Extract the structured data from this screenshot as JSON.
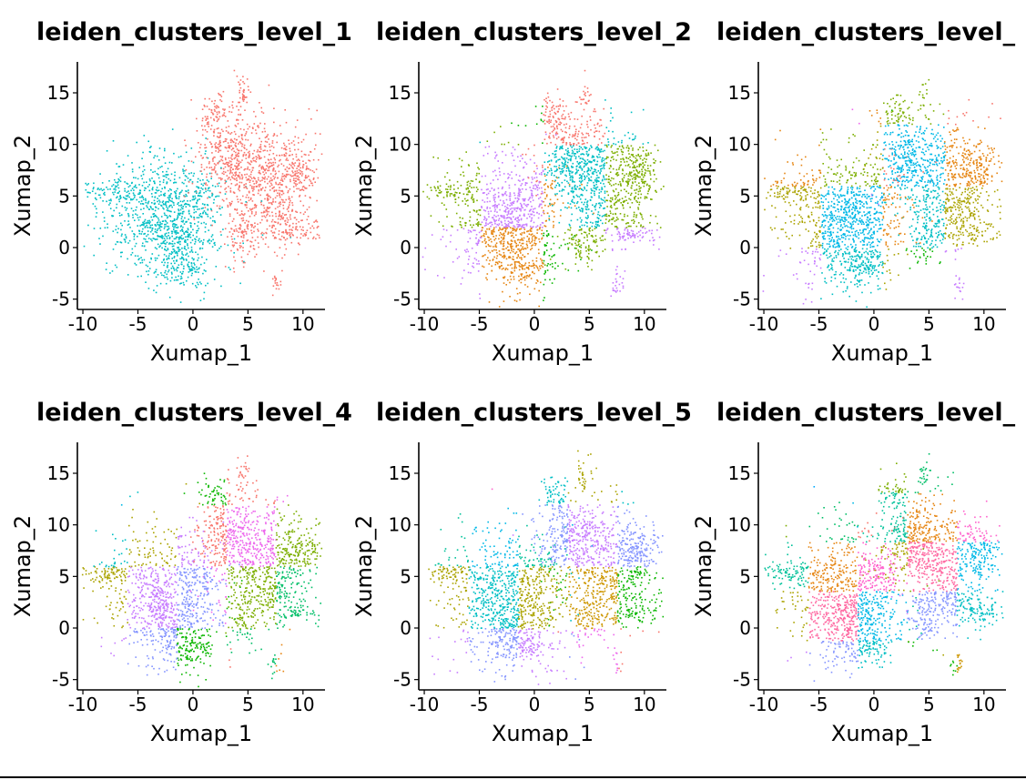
{
  "figure": {
    "panel_type": "scatter",
    "layout": {
      "rows": 2,
      "cols": 3
    },
    "cluster_palette": [
      "#F8766D",
      "#00BFC4",
      "#7CAE00",
      "#C77CFF",
      "#E68613",
      "#0CB702",
      "#00B8E7",
      "#ED68ED",
      "#ABA300",
      "#00BE67",
      "#8494FF",
      "#FF61CC",
      "#CD9600",
      "#00C19A",
      "#00A9FF",
      "#FF68A1"
    ]
  },
  "chart_data": [
    {
      "type": "scatter",
      "title": "leiden_clusters_level_1",
      "xlabel": "Xumap_1",
      "ylabel": "Xumap_2",
      "xlim": [
        -10.5,
        12
      ],
      "ylim": [
        -6,
        18
      ],
      "xticks": [
        -10,
        -5,
        0,
        5,
        10
      ],
      "yticks": [
        -5,
        0,
        5,
        10,
        15
      ],
      "xtick_labels": [
        "-10",
        "-5",
        "0",
        "5",
        "10"
      ],
      "ytick_labels": [
        "-5",
        "0",
        "5",
        "10",
        "15"
      ],
      "legend": "none",
      "n_clusters": 2
    },
    {
      "type": "scatter",
      "title": "leiden_clusters_level_2",
      "xlabel": "Xumap_1",
      "ylabel": "Xumap_2",
      "xlim": [
        -10.5,
        12
      ],
      "ylim": [
        -6,
        18
      ],
      "xticks": [
        -10,
        -5,
        0,
        5,
        10
      ],
      "yticks": [
        -5,
        0,
        5,
        10,
        15
      ],
      "xtick_labels": [
        "-10",
        "-5",
        "0",
        "5",
        "10"
      ],
      "ytick_labels": [
        "-5",
        "0",
        "5",
        "10",
        "15"
      ],
      "legend": "none",
      "n_clusters": 6
    },
    {
      "type": "scatter",
      "title": "leiden_clusters_level_",
      "xlabel": "Xumap_1",
      "ylabel": "Xumap_2",
      "xlim": [
        -10.5,
        12
      ],
      "ylim": [
        -6,
        18
      ],
      "xticks": [
        -10,
        -5,
        0,
        5,
        10
      ],
      "yticks": [
        -5,
        0,
        5,
        10,
        15
      ],
      "xtick_labels": [
        "-10",
        "-5",
        "0",
        "5",
        "10"
      ],
      "ytick_labels": [
        "-5",
        "0",
        "5",
        "10",
        "15"
      ],
      "legend": "none",
      "n_clusters": 9
    },
    {
      "type": "scatter",
      "title": "leiden_clusters_level_4",
      "xlabel": "Xumap_1",
      "ylabel": "Xumap_2",
      "xlim": [
        -10.5,
        12
      ],
      "ylim": [
        -6,
        18
      ],
      "xticks": [
        -10,
        -5,
        0,
        5,
        10
      ],
      "yticks": [
        -5,
        0,
        5,
        10,
        15
      ],
      "xtick_labels": [
        "-10",
        "-5",
        "0",
        "5",
        "10"
      ],
      "ytick_labels": [
        "-5",
        "0",
        "5",
        "10",
        "15"
      ],
      "legend": "none",
      "n_clusters": 12
    },
    {
      "type": "scatter",
      "title": "leiden_clusters_level_5",
      "xlabel": "Xumap_1",
      "ylabel": "Xumap_2",
      "xlim": [
        -10.5,
        12
      ],
      "ylim": [
        -6,
        18
      ],
      "xticks": [
        -10,
        -5,
        0,
        5,
        10
      ],
      "yticks": [
        -5,
        0,
        5,
        10,
        15
      ],
      "xtick_labels": [
        "-10",
        "-5",
        "0",
        "5",
        "10"
      ],
      "ytick_labels": [
        "-5",
        "0",
        "5",
        "10",
        "15"
      ],
      "legend": "none",
      "n_clusters": 14
    },
    {
      "type": "scatter",
      "title": "leiden_clusters_level_",
      "xlabel": "Xumap_1",
      "ylabel": "Xumap_2",
      "xlim": [
        -10.5,
        12
      ],
      "ylim": [
        -6,
        18
      ],
      "xticks": [
        -10,
        -5,
        0,
        5,
        10
      ],
      "yticks": [
        -5,
        0,
        5,
        10,
        15
      ],
      "xtick_labels": [
        "-10",
        "-5",
        "0",
        "5",
        "10"
      ],
      "ytick_labels": [
        "-5",
        "0",
        "5",
        "10",
        "15"
      ],
      "legend": "none",
      "n_clusters": 16
    }
  ]
}
